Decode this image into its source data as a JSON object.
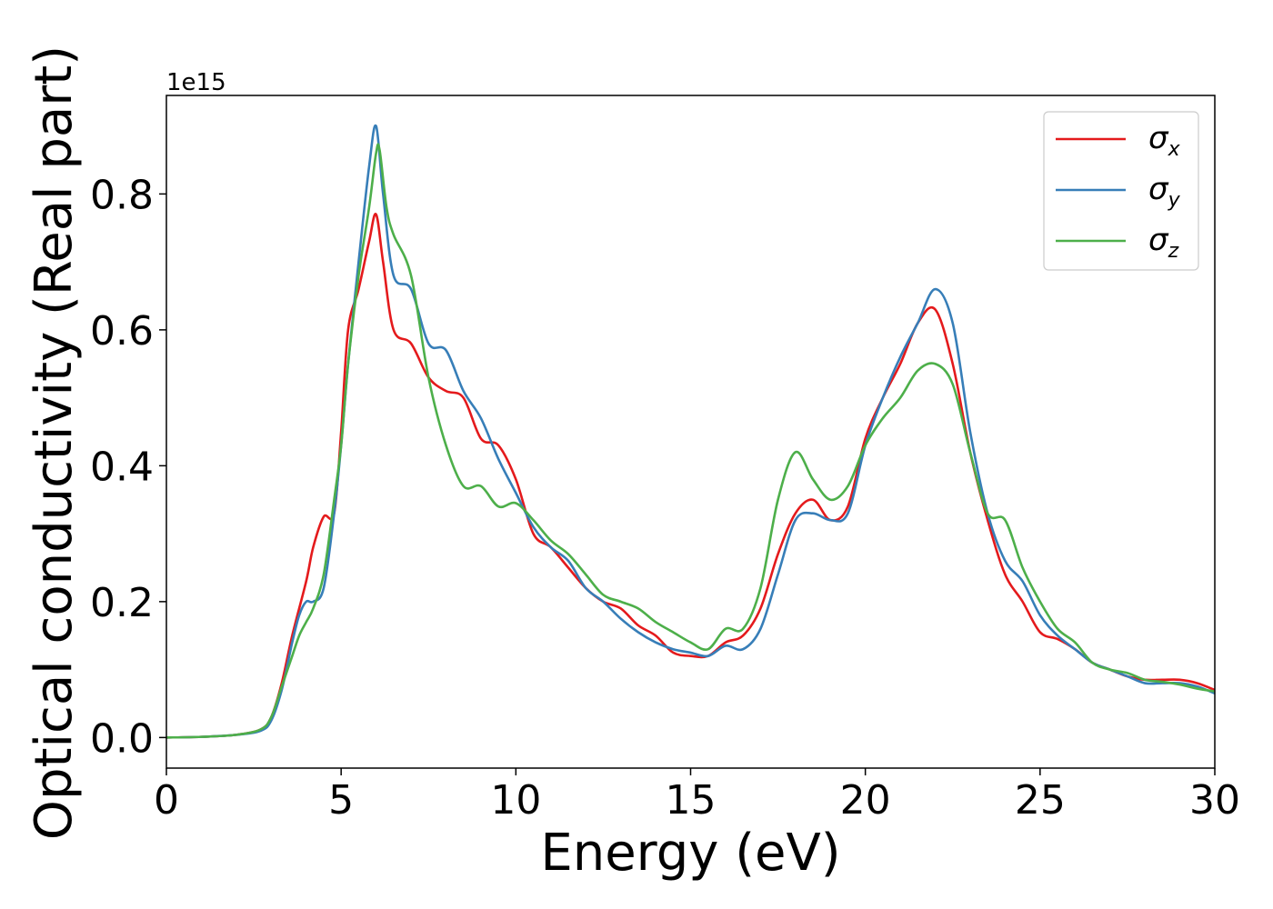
{
  "chart_data": {
    "type": "line",
    "xlabel": "Energy (eV)",
    "ylabel": "Optical conductivity (Real part)",
    "y_offset_label": "1e15",
    "xlim": [
      0,
      30
    ],
    "ylim": [
      -0.045,
      0.945
    ],
    "x_ticks": [
      0,
      5,
      10,
      15,
      20,
      25,
      30
    ],
    "x_tick_labels": [
      "0",
      "5",
      "10",
      "15",
      "20",
      "25",
      "30"
    ],
    "y_ticks": [
      0.0,
      0.2,
      0.4,
      0.6,
      0.8
    ],
    "y_tick_labels": [
      "0.0",
      "0.2",
      "0.4",
      "0.6",
      "0.8"
    ],
    "grid": false,
    "legend_position": "top-right",
    "series": [
      {
        "name": "σx",
        "name_base": "σ",
        "name_sub": "x",
        "color": "#e41a1c",
        "x": [
          0,
          1,
          2,
          2.7,
          3.0,
          3.3,
          3.6,
          4.0,
          4.2,
          4.5,
          4.8,
          5.0,
          5.2,
          5.5,
          5.8,
          6.0,
          6.2,
          6.5,
          7.0,
          7.5,
          8.0,
          8.5,
          9.0,
          9.5,
          10.0,
          10.5,
          11.0,
          11.5,
          12.0,
          12.5,
          13.0,
          13.5,
          14.0,
          14.5,
          15.0,
          15.5,
          16.0,
          16.5,
          17.0,
          17.5,
          18.0,
          18.5,
          19.0,
          19.5,
          20.0,
          20.5,
          21.0,
          21.5,
          22.0,
          22.5,
          23.0,
          23.5,
          24.0,
          24.5,
          25.0,
          25.5,
          26.0,
          26.5,
          27.0,
          27.5,
          28.0,
          28.5,
          29.0,
          29.5,
          30.0
        ],
        "y": [
          0.0,
          0.001,
          0.004,
          0.012,
          0.03,
          0.08,
          0.15,
          0.23,
          0.28,
          0.325,
          0.33,
          0.45,
          0.6,
          0.66,
          0.73,
          0.77,
          0.7,
          0.6,
          0.58,
          0.53,
          0.51,
          0.5,
          0.44,
          0.43,
          0.38,
          0.3,
          0.28,
          0.25,
          0.22,
          0.2,
          0.19,
          0.165,
          0.15,
          0.125,
          0.12,
          0.12,
          0.14,
          0.15,
          0.19,
          0.27,
          0.33,
          0.35,
          0.32,
          0.34,
          0.44,
          0.5,
          0.55,
          0.61,
          0.63,
          0.55,
          0.42,
          0.32,
          0.24,
          0.2,
          0.155,
          0.145,
          0.13,
          0.11,
          0.1,
          0.09,
          0.085,
          0.085,
          0.085,
          0.08,
          0.07
        ]
      },
      {
        "name": "σy",
        "name_base": "σ",
        "name_sub": "y",
        "color": "#377eb8",
        "x": [
          0,
          1,
          2,
          2.7,
          3.0,
          3.3,
          3.6,
          3.8,
          4.0,
          4.2,
          4.5,
          4.8,
          5.0,
          5.2,
          5.5,
          5.8,
          6.0,
          6.2,
          6.5,
          7.0,
          7.5,
          8.0,
          8.5,
          9.0,
          9.5,
          10.0,
          10.5,
          11.0,
          11.5,
          12.0,
          12.5,
          13.0,
          13.5,
          14.0,
          14.5,
          15.0,
          15.5,
          16.0,
          16.5,
          17.0,
          17.5,
          18.0,
          18.5,
          19.0,
          19.5,
          20.0,
          20.5,
          21.0,
          21.5,
          22.0,
          22.5,
          23.0,
          23.5,
          24.0,
          24.5,
          25.0,
          25.5,
          26.0,
          26.5,
          27.0,
          27.5,
          28.0,
          28.5,
          29.0,
          29.5,
          30.0
        ],
        "y": [
          0.0,
          0.001,
          0.004,
          0.01,
          0.025,
          0.07,
          0.14,
          0.18,
          0.2,
          0.2,
          0.22,
          0.33,
          0.43,
          0.55,
          0.7,
          0.84,
          0.9,
          0.8,
          0.68,
          0.66,
          0.58,
          0.57,
          0.51,
          0.47,
          0.41,
          0.36,
          0.31,
          0.28,
          0.26,
          0.22,
          0.2,
          0.175,
          0.155,
          0.14,
          0.13,
          0.125,
          0.12,
          0.135,
          0.13,
          0.16,
          0.24,
          0.32,
          0.33,
          0.32,
          0.33,
          0.43,
          0.5,
          0.56,
          0.61,
          0.66,
          0.61,
          0.45,
          0.33,
          0.26,
          0.23,
          0.18,
          0.15,
          0.13,
          0.11,
          0.1,
          0.09,
          0.08,
          0.08,
          0.08,
          0.075,
          0.065
        ]
      },
      {
        "name": "σz",
        "name_base": "σ",
        "name_sub": "z",
        "color": "#4daf4a",
        "x": [
          0,
          1,
          2,
          2.7,
          3.0,
          3.3,
          3.6,
          3.8,
          4.0,
          4.2,
          4.5,
          4.8,
          5.0,
          5.2,
          5.5,
          5.8,
          6.0,
          6.1,
          6.3,
          6.5,
          7.0,
          7.5,
          8.0,
          8.5,
          9.0,
          9.5,
          10.0,
          10.5,
          11.0,
          11.5,
          12.0,
          12.5,
          13.0,
          13.5,
          14.0,
          14.5,
          15.0,
          15.5,
          16.0,
          16.5,
          17.0,
          17.5,
          18.0,
          18.5,
          19.0,
          19.5,
          20.0,
          20.5,
          21.0,
          21.5,
          22.0,
          22.5,
          23.0,
          23.5,
          24.0,
          24.5,
          25.0,
          25.5,
          26.0,
          26.5,
          27.0,
          27.5,
          28.0,
          28.5,
          29.0,
          29.5,
          30.0
        ],
        "y": [
          0.0,
          0.001,
          0.004,
          0.012,
          0.03,
          0.075,
          0.12,
          0.15,
          0.17,
          0.19,
          0.24,
          0.35,
          0.43,
          0.55,
          0.68,
          0.78,
          0.86,
          0.865,
          0.78,
          0.74,
          0.68,
          0.53,
          0.43,
          0.37,
          0.37,
          0.34,
          0.345,
          0.32,
          0.29,
          0.27,
          0.24,
          0.21,
          0.2,
          0.19,
          0.17,
          0.155,
          0.14,
          0.13,
          0.16,
          0.16,
          0.22,
          0.35,
          0.42,
          0.38,
          0.35,
          0.37,
          0.43,
          0.47,
          0.5,
          0.54,
          0.55,
          0.52,
          0.42,
          0.33,
          0.32,
          0.25,
          0.2,
          0.16,
          0.14,
          0.11,
          0.1,
          0.095,
          0.085,
          0.082,
          0.078,
          0.072,
          0.068
        ]
      }
    ]
  }
}
